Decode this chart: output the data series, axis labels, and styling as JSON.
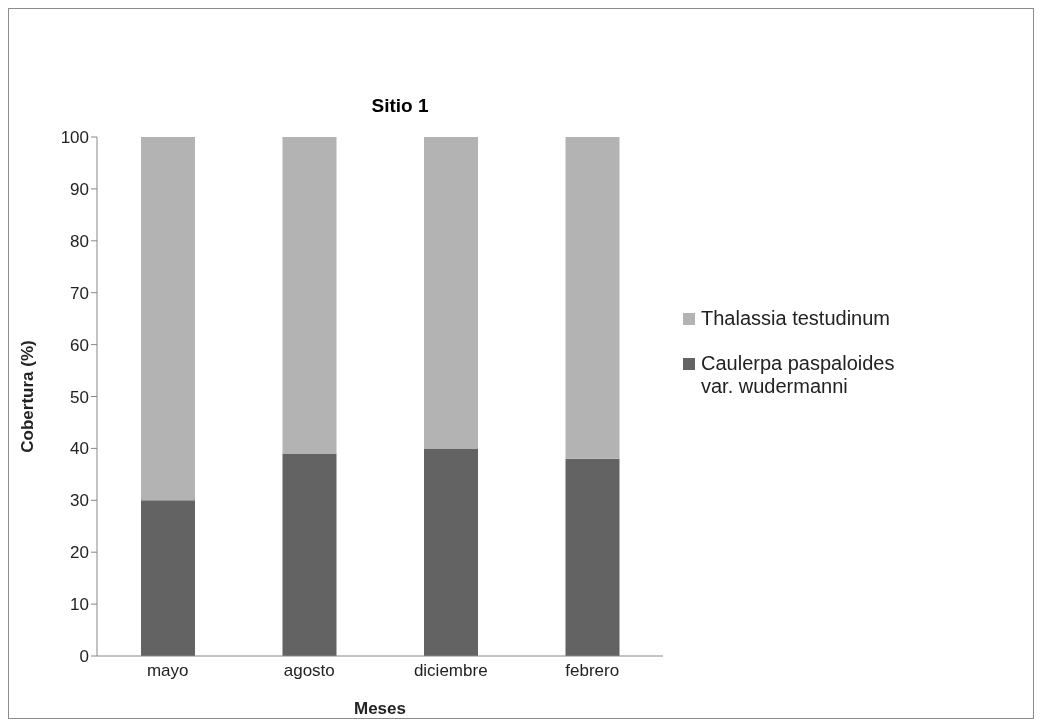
{
  "chart_data": {
    "type": "bar",
    "title": "Sitio 1",
    "xlabel": "Meses",
    "ylabel": "Cobertura (%)",
    "categories": [
      "mayo",
      "agosto",
      "diciembre",
      "febrero"
    ],
    "stacked": true,
    "ylim": [
      0,
      100
    ],
    "yticks": [
      0,
      10,
      20,
      30,
      40,
      50,
      60,
      70,
      80,
      90,
      100
    ],
    "grid": false,
    "legend": "right",
    "series": [
      {
        "name": "Caulerpa paspaloides var. wudermanni",
        "color": "#636363",
        "values": [
          30,
          39,
          40,
          38
        ]
      },
      {
        "name": "Thalassia testudinum",
        "color": "#b3b3b3",
        "values": [
          70,
          61,
          60,
          62
        ]
      }
    ]
  }
}
